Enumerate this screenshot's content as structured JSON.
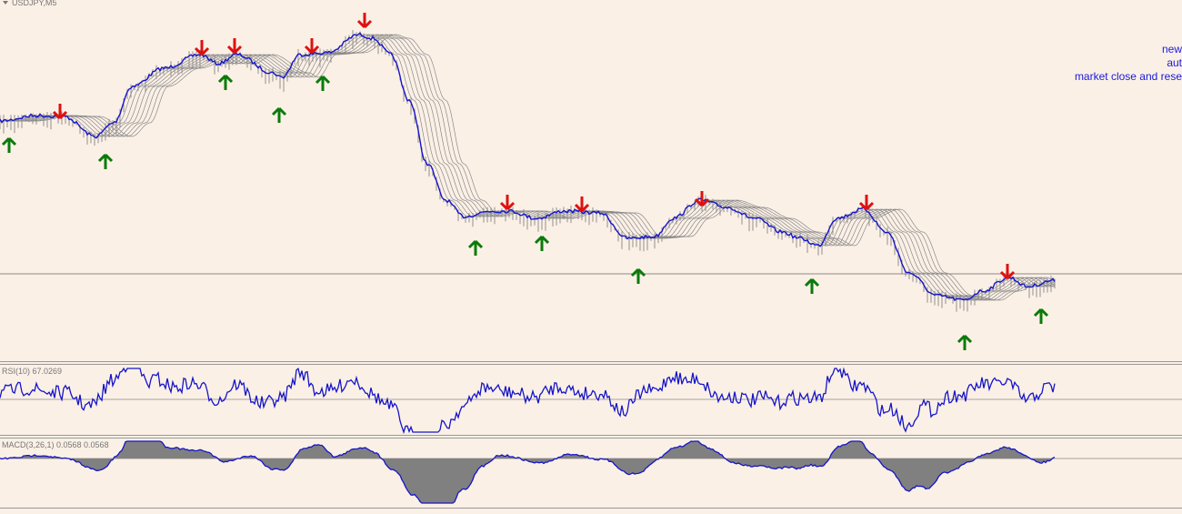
{
  "window": {
    "symbol": "USDJPY,M5"
  },
  "notes": [
    "new",
    "aut",
    "market close and rese"
  ],
  "rsi": {
    "label": "RSI(10) 67.0269"
  },
  "macd": {
    "label": "MACD(3,26,1) 0.0568 0.0568"
  }
}
